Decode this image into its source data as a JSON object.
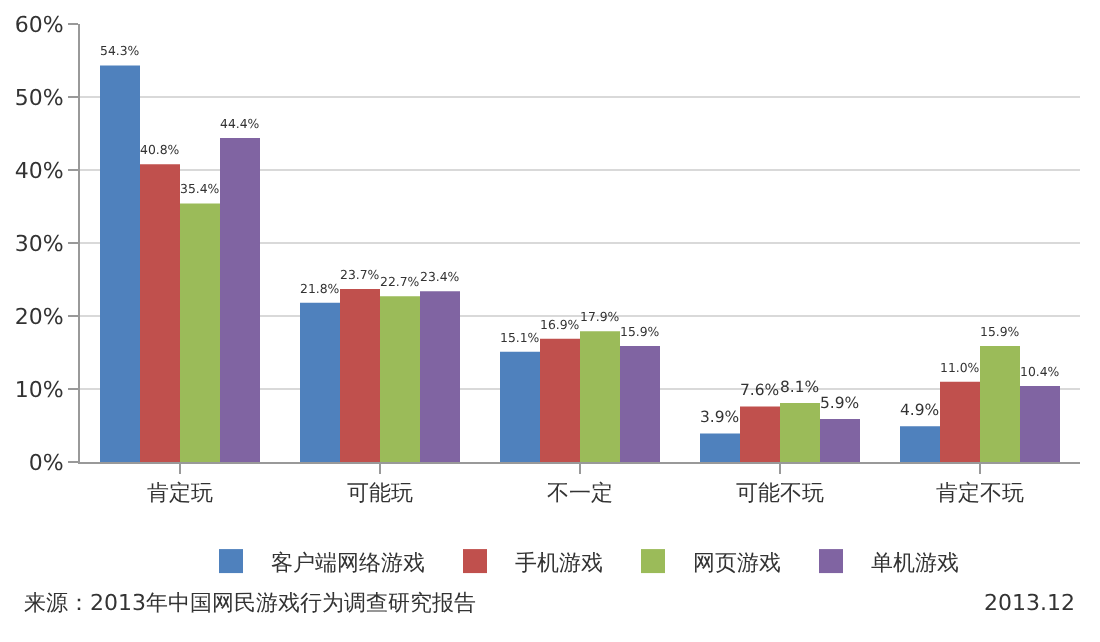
{
  "chart_data": {
    "type": "bar",
    "categories": [
      "肯定玩",
      "可能玩",
      "不一定",
      "可能不玩",
      "肯定不玩"
    ],
    "series": [
      {
        "name": "客户端网络游戏",
        "color": "#4f81bd",
        "values": [
          54.3,
          21.8,
          15.1,
          3.9,
          4.9
        ],
        "value_labels": [
          "54.3%",
          "21.8%",
          "15.1%",
          "3.9%",
          "4.9%"
        ]
      },
      {
        "name": "手机游戏",
        "color": "#c0504d",
        "values": [
          40.8,
          23.7,
          16.9,
          7.6,
          11.0
        ],
        "value_labels": [
          "40.8%",
          "23.7%",
          "16.9%",
          "7.6%",
          "11.0%"
        ]
      },
      {
        "name": "网页游戏",
        "color": "#9bbb59",
        "values": [
          35.4,
          22.7,
          17.9,
          8.1,
          15.9
        ],
        "value_labels": [
          "35.4%",
          "22.7%",
          "17.9%",
          "8.1%",
          "15.9%"
        ]
      },
      {
        "name": "单机游戏",
        "color": "#8064a2",
        "values": [
          44.4,
          23.4,
          15.9,
          5.9,
          10.4
        ],
        "value_labels": [
          "44.4%",
          "23.4%",
          "15.9%",
          "5.9%",
          "10.4%"
        ]
      }
    ],
    "ylim": [
      0,
      60
    ],
    "yticks": [
      {
        "value": 0,
        "label": "0%"
      },
      {
        "value": 10,
        "label": "10%"
      },
      {
        "value": 20,
        "label": "20%"
      },
      {
        "value": 30,
        "label": "30%"
      },
      {
        "value": 40,
        "label": "40%"
      },
      {
        "value": 50,
        "label": "50%"
      },
      {
        "value": 60,
        "label": "60%"
      }
    ],
    "grid": "y",
    "legend": "bottom",
    "annotations": [
      "来源：2013年中国网民游戏行为调查研究报告",
      "2013.12"
    ]
  }
}
